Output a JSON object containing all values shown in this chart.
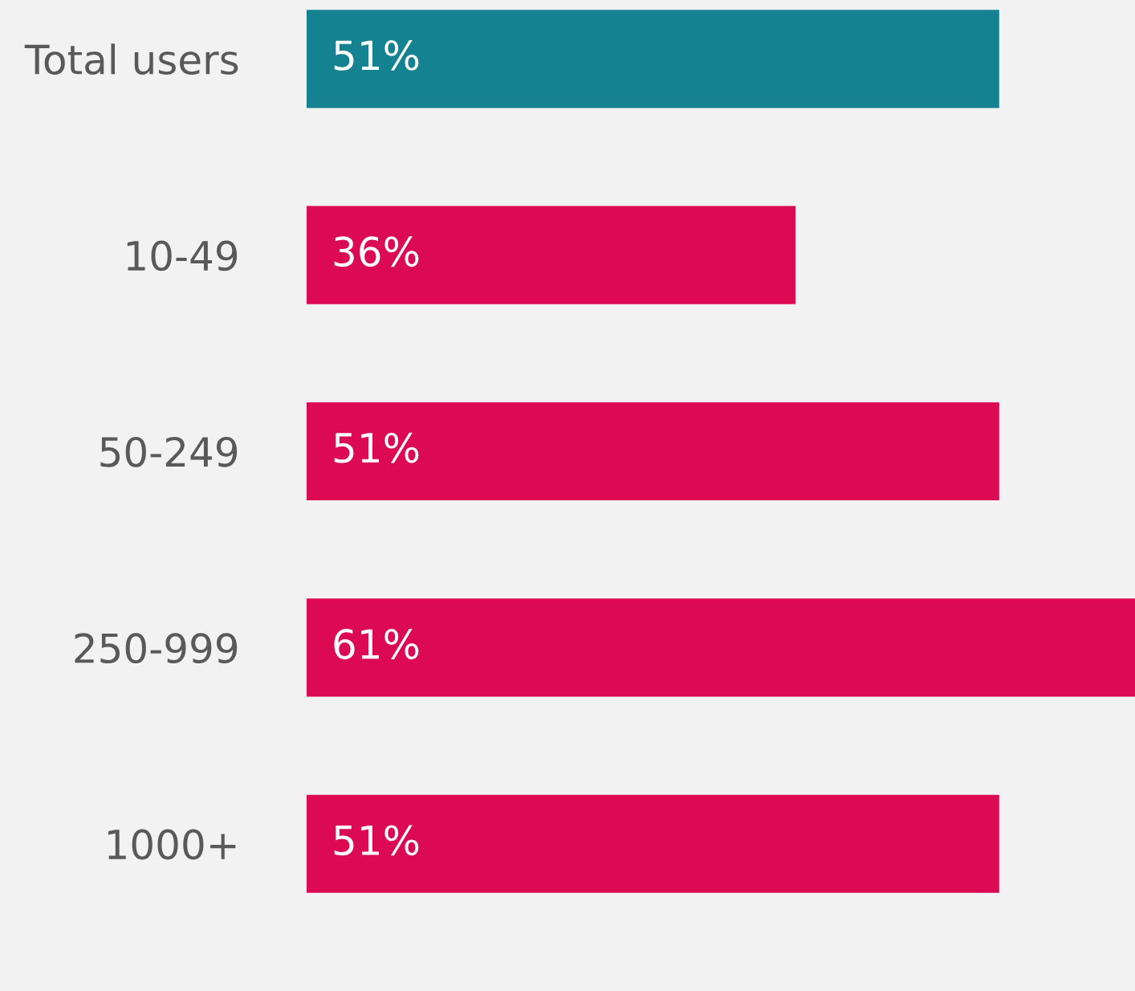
{
  "chart_data": {
    "type": "bar",
    "orientation": "horizontal",
    "categories": [
      "Total users",
      "10-49",
      "50-249",
      "250-999",
      "1000+"
    ],
    "values": [
      51,
      36,
      51,
      61,
      51
    ],
    "colors": [
      "#148290",
      "#dc0a52",
      "#dc0a52",
      "#dc0a52",
      "#dc0a52"
    ],
    "value_labels": [
      "51%",
      "36%",
      "51%",
      "61%",
      "51%"
    ],
    "xlim": [
      0,
      61
    ],
    "tick_labels": "y",
    "grid": false,
    "legend": false
  }
}
